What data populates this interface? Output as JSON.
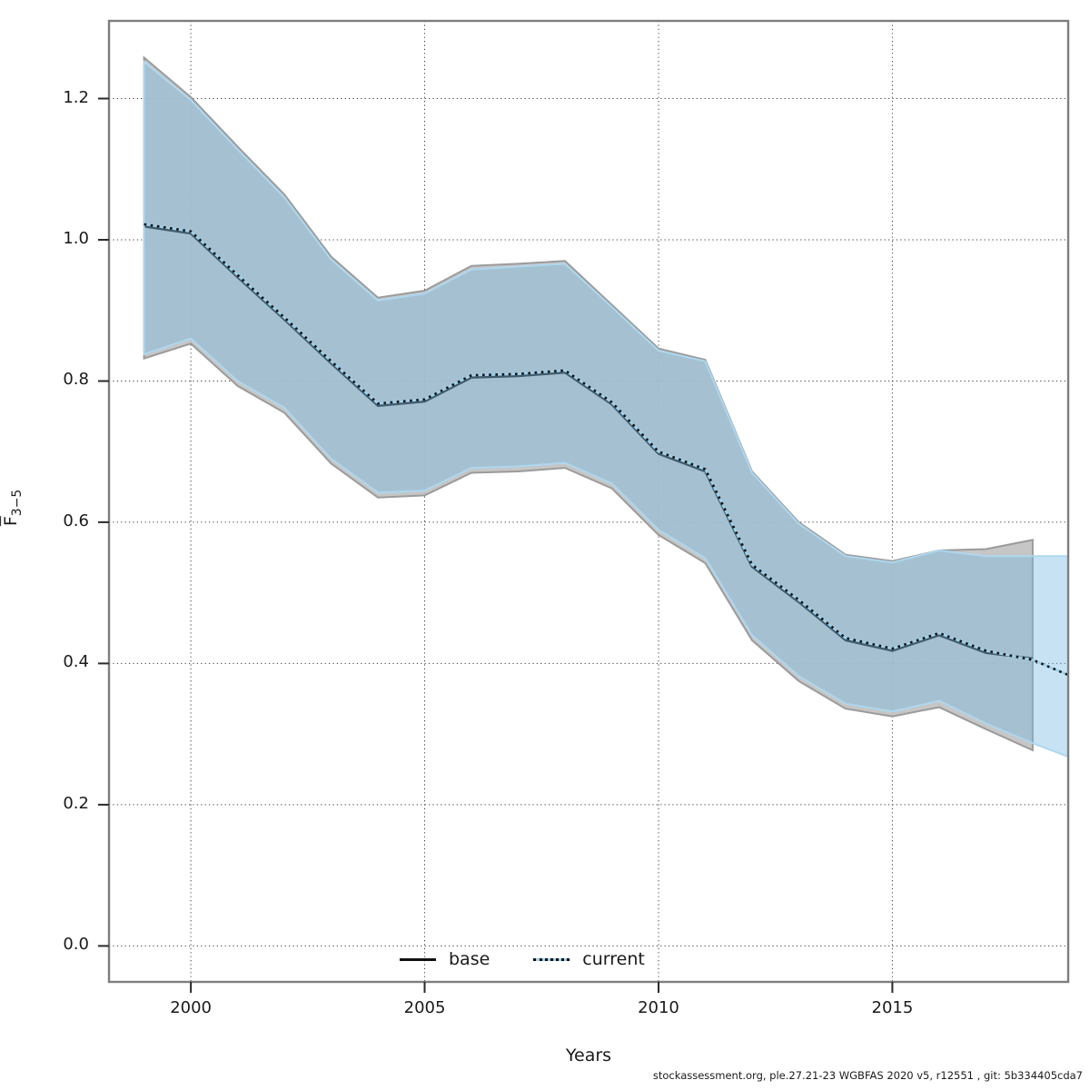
{
  "chart_data": {
    "type": "line",
    "title": "",
    "xlabel": "Years",
    "ylabel": "F̅3−5",
    "ylabel_letter": "F",
    "ylabel_sub": "3−5",
    "xlim": [
      1998.25,
      2018.76
    ],
    "ylim": [
      -0.051,
      1.31
    ],
    "x_ticks": [
      2000,
      2005,
      2010,
      2015
    ],
    "x_tick_labels": [
      "2000",
      "2005",
      "2010",
      "2015"
    ],
    "y_ticks": [
      0.0,
      0.2,
      0.4,
      0.6,
      0.8,
      1.0,
      1.2
    ],
    "y_tick_labels": [
      "0.0",
      "0.2",
      "0.4",
      "0.6",
      "0.8",
      "1.0",
      "1.2"
    ],
    "grid": "dotted",
    "legend_position": "bottom-center-inside",
    "series": [
      {
        "name": "base",
        "line_style": "solid",
        "line_color": "#1a1a1a",
        "band_fill": "#c0c0c0",
        "band_fill_opacity": 0.9,
        "band_edge": "#9b9b9b",
        "years": [
          1999,
          2000,
          2001,
          2002,
          2003,
          2004,
          2005,
          2006,
          2007,
          2008,
          2009,
          2010,
          2011,
          2012,
          2013,
          2014,
          2015,
          2016,
          2017,
          2018
        ],
        "line": [
          1.019,
          1.009,
          0.947,
          0.887,
          0.825,
          0.765,
          0.771,
          0.805,
          0.807,
          0.812,
          0.767,
          0.697,
          0.672,
          0.537,
          0.487,
          0.433,
          0.418,
          0.44,
          0.415,
          0.407
        ],
        "upper": [
          1.258,
          1.202,
          1.132,
          1.064,
          0.976,
          0.918,
          0.928,
          0.963,
          0.966,
          0.97,
          0.908,
          0.846,
          0.83,
          0.672,
          0.6,
          0.554,
          0.545,
          0.56,
          0.562,
          0.575
        ],
        "lower": [
          0.832,
          0.853,
          0.793,
          0.755,
          0.683,
          0.635,
          0.638,
          0.67,
          0.672,
          0.677,
          0.648,
          0.582,
          0.542,
          0.433,
          0.375,
          0.336,
          0.325,
          0.338,
          0.307,
          0.277
        ]
      },
      {
        "name": "current",
        "line_style": "dotted",
        "line_color": "#111111",
        "line_undercolor": "#9fd0ea",
        "band_fill": "rgba(118,187,226,0.41)",
        "band_edge": "#aed7ef",
        "years": [
          1999,
          2000,
          2001,
          2002,
          2003,
          2004,
          2005,
          2006,
          2007,
          2008,
          2009,
          2010,
          2011,
          2012,
          2013,
          2014,
          2015,
          2016,
          2017,
          2018,
          2019
        ],
        "line": [
          1.022,
          1.012,
          0.95,
          0.89,
          0.828,
          0.768,
          0.774,
          0.808,
          0.81,
          0.815,
          0.77,
          0.7,
          0.675,
          0.54,
          0.49,
          0.436,
          0.421,
          0.443,
          0.418,
          0.405,
          0.377
        ],
        "upper": [
          1.252,
          1.198,
          1.128,
          1.06,
          0.972,
          0.914,
          0.924,
          0.958,
          0.962,
          0.966,
          0.905,
          0.843,
          0.828,
          0.67,
          0.598,
          0.552,
          0.543,
          0.56,
          0.552,
          0.552,
          0.552
        ],
        "lower": [
          0.838,
          0.86,
          0.8,
          0.762,
          0.69,
          0.642,
          0.645,
          0.677,
          0.679,
          0.684,
          0.655,
          0.589,
          0.549,
          0.44,
          0.382,
          0.343,
          0.332,
          0.347,
          0.315,
          0.287,
          0.262
        ]
      }
    ]
  },
  "legend": {
    "base_label": "base",
    "current_label": "current"
  },
  "labels": {
    "xlabel": "Years",
    "attribution": "stockassessment.org, ple.27.21-23 WGBFAS 2020 v5, r12551 , git: 5b334405cda7"
  },
  "style": {
    "grid_color": "#3a3a3a",
    "border_color": "#7e7e7e",
    "tick_color": "#2a2a2a"
  }
}
